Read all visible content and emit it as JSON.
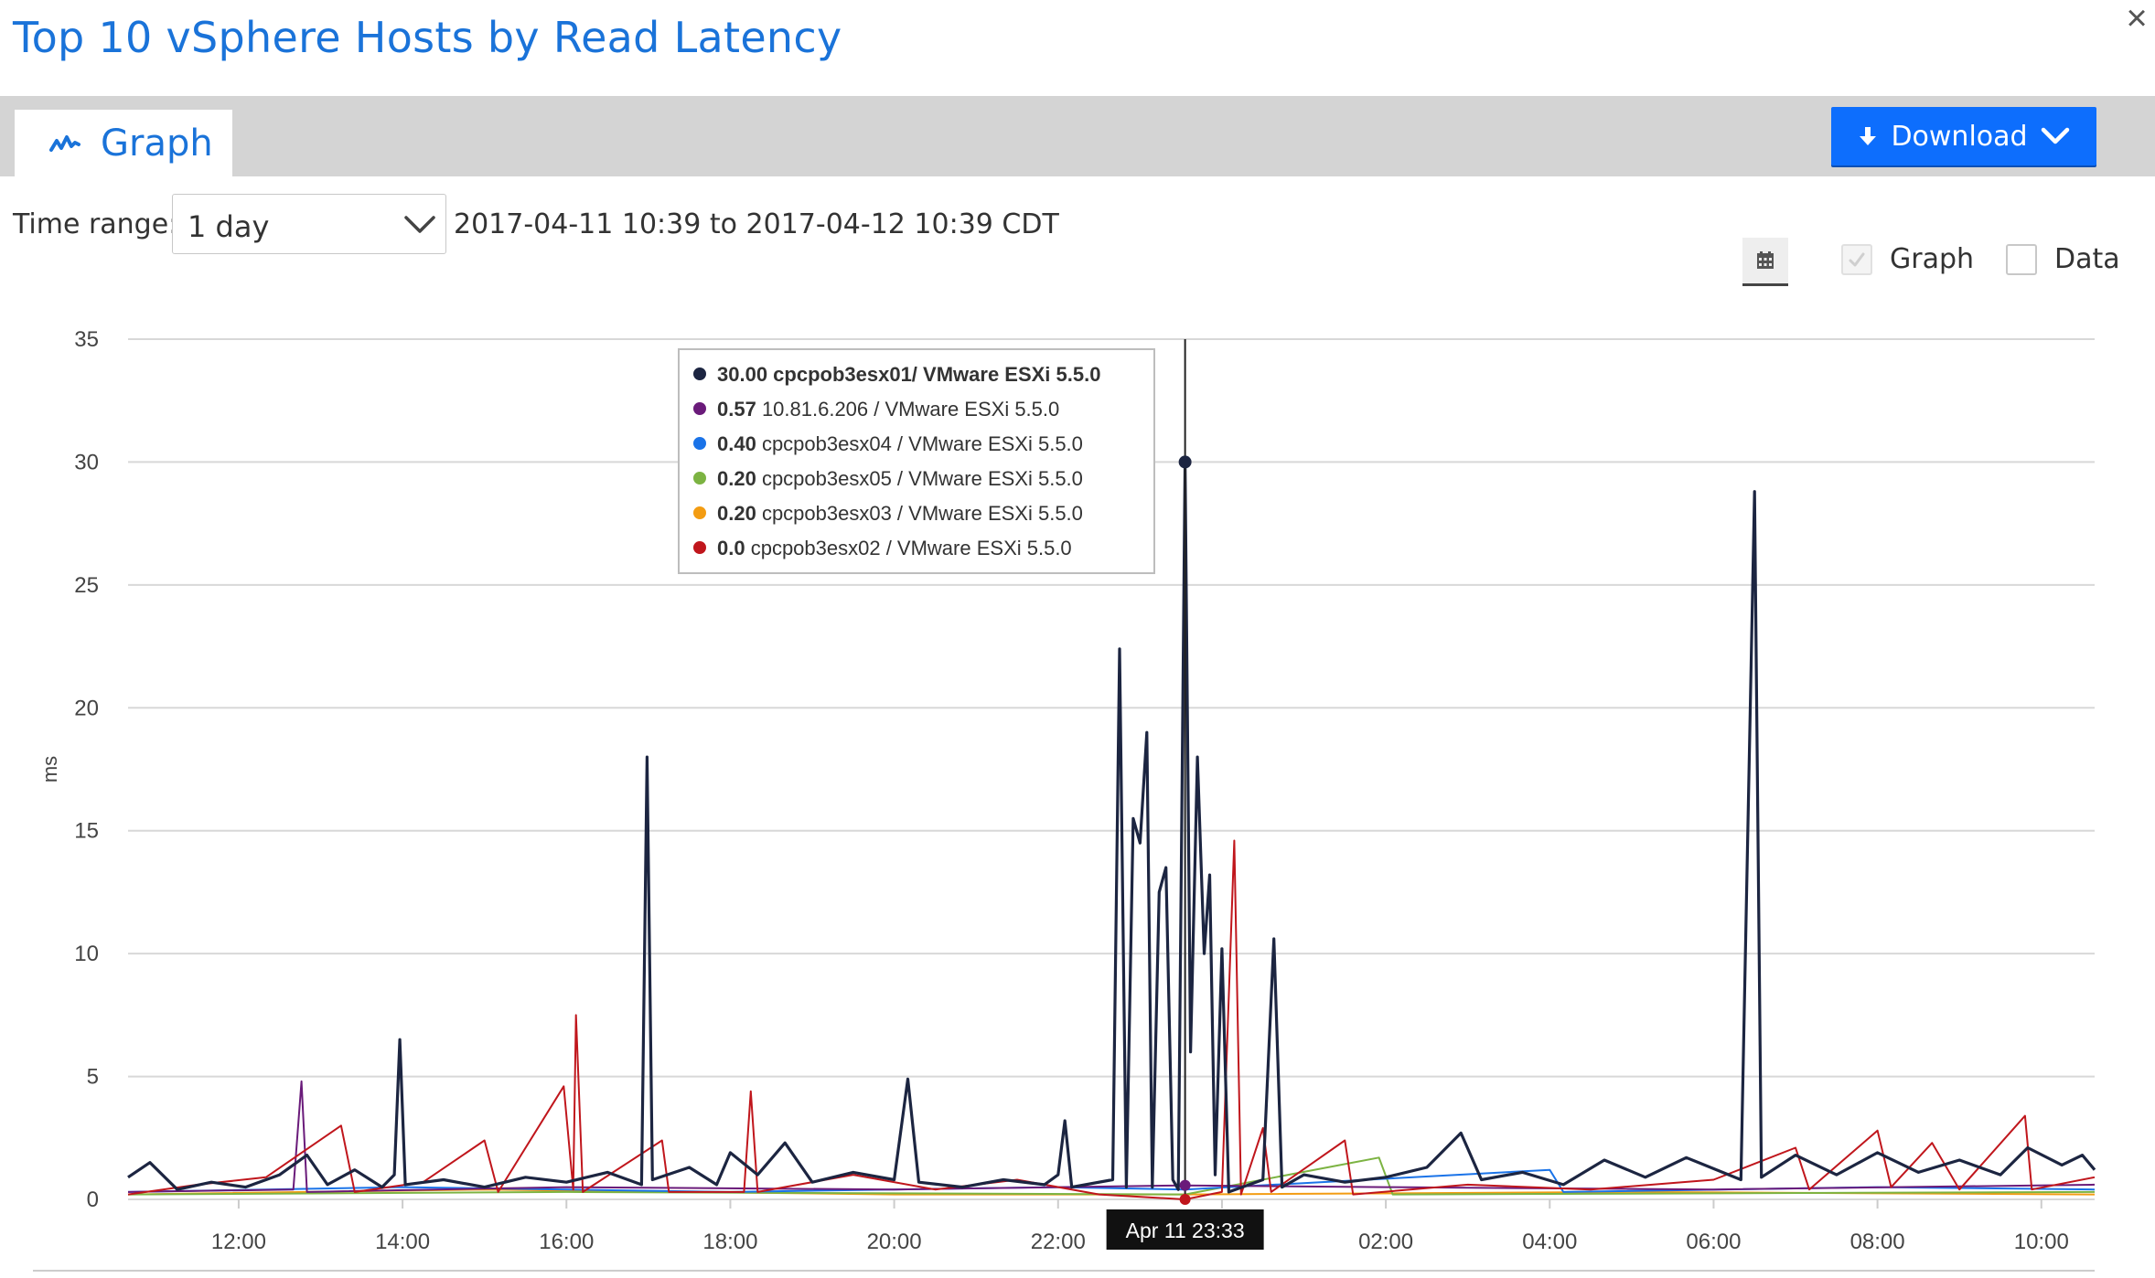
{
  "header": {
    "title": "Top 10 vSphere Hosts by Read Latency",
    "close_glyph": "×"
  },
  "tabs": [
    {
      "label": "Graph",
      "icon": "graph-icon",
      "active": true
    }
  ],
  "toolbar": {
    "download_label": "Download",
    "accent": "#0d6efd"
  },
  "controls": {
    "time_range_label": "Time range:",
    "time_range_value": "1 day",
    "date_range_text": "2017-04-11 10:39 to 2017-04-12 10:39 CDT",
    "calendar_icon": "calendar-icon",
    "view_options": [
      {
        "label": "Graph",
        "checked": true,
        "disabled": true
      },
      {
        "label": "Data",
        "checked": false
      }
    ]
  },
  "tooltip": {
    "entries": [
      {
        "value": "30.00",
        "label": "cpcpob3esx01/ VMware ESXi 5.5.0",
        "color": "#1c2541",
        "bold": true
      },
      {
        "value": "0.57",
        "label": "10.81.6.206 / VMware ESXi 5.5.0",
        "color": "#6a1b7a"
      },
      {
        "value": "0.40",
        "label": "cpcpob3esx04 / VMware ESXi 5.5.0",
        "color": "#1a73e8"
      },
      {
        "value": "0.20",
        "label": "cpcpob3esx05 / VMware ESXi 5.5.0",
        "color": "#7cb342"
      },
      {
        "value": "0.20",
        "label": "cpcpob3esx03 / VMware ESXi 5.5.0",
        "color": "#f39c12"
      },
      {
        "value": "0.0",
        "label": "cpcpob3esx02 / VMware ESXi 5.5.0",
        "color": "#c0161c"
      }
    ],
    "crosshair_label": "Apr 11 23:33"
  },
  "chart_data": {
    "type": "line",
    "ylabel": "ms",
    "ylim": [
      0,
      35
    ],
    "y_ticks": [
      "0",
      "5",
      "10",
      "15",
      "20",
      "25",
      "30",
      "35"
    ],
    "x_range": [
      "2017-04-11 10:39",
      "2017-04-12 10:39"
    ],
    "x_ticks": [
      "12:00",
      "14:00",
      "16:00",
      "18:00",
      "20:00",
      "22:00",
      "00:00",
      "02:00",
      "04:00",
      "06:00",
      "08:00",
      "10:00"
    ],
    "grid": true,
    "series": [
      {
        "name": "cpcpob3esx01/ VMware ESXi 5.5.0",
        "color": "#1c2541",
        "points": [
          [
            "2017-04-11 10:39",
            0.9
          ],
          [
            "2017-04-11 10:55",
            1.5
          ],
          [
            "2017-04-11 11:15",
            0.4
          ],
          [
            "2017-04-11 11:40",
            0.7
          ],
          [
            "2017-04-11 12:05",
            0.5
          ],
          [
            "2017-04-11 12:30",
            1.0
          ],
          [
            "2017-04-11 12:50",
            1.8
          ],
          [
            "2017-04-11 13:05",
            0.6
          ],
          [
            "2017-04-11 13:25",
            1.2
          ],
          [
            "2017-04-11 13:45",
            0.5
          ],
          [
            "2017-04-11 13:54",
            1.0
          ],
          [
            "2017-04-11 13:58",
            6.5
          ],
          [
            "2017-04-11 14:02",
            0.6
          ],
          [
            "2017-04-11 14:30",
            0.8
          ],
          [
            "2017-04-11 15:00",
            0.5
          ],
          [
            "2017-04-11 15:30",
            0.9
          ],
          [
            "2017-04-11 16:00",
            0.7
          ],
          [
            "2017-04-11 16:30",
            1.1
          ],
          [
            "2017-04-11 16:55",
            0.6
          ],
          [
            "2017-04-11 16:59",
            18.0
          ],
          [
            "2017-04-11 17:03",
            0.8
          ],
          [
            "2017-04-11 17:30",
            1.3
          ],
          [
            "2017-04-11 17:50",
            0.6
          ],
          [
            "2017-04-11 18:00",
            1.9
          ],
          [
            "2017-04-11 18:20",
            1.0
          ],
          [
            "2017-04-11 18:40",
            2.3
          ],
          [
            "2017-04-11 19:00",
            0.7
          ],
          [
            "2017-04-11 19:30",
            1.1
          ],
          [
            "2017-04-11 20:00",
            0.8
          ],
          [
            "2017-04-11 20:10",
            4.9
          ],
          [
            "2017-04-11 20:18",
            0.7
          ],
          [
            "2017-04-11 20:50",
            0.5
          ],
          [
            "2017-04-11 21:20",
            0.8
          ],
          [
            "2017-04-11 21:50",
            0.6
          ],
          [
            "2017-04-11 22:00",
            1.0
          ],
          [
            "2017-04-11 22:05",
            3.2
          ],
          [
            "2017-04-11 22:10",
            0.5
          ],
          [
            "2017-04-11 22:40",
            0.8
          ],
          [
            "2017-04-11 22:45",
            22.4
          ],
          [
            "2017-04-11 22:50",
            0.5
          ],
          [
            "2017-04-11 22:55",
            15.5
          ],
          [
            "2017-04-11 23:00",
            14.5
          ],
          [
            "2017-04-11 23:05",
            19.0
          ],
          [
            "2017-04-11 23:09",
            0.5
          ],
          [
            "2017-04-11 23:14",
            12.5
          ],
          [
            "2017-04-11 23:19",
            13.5
          ],
          [
            "2017-04-11 23:24",
            0.8
          ],
          [
            "2017-04-11 23:28",
            0.4
          ],
          [
            "2017-04-11 23:33",
            30.0
          ],
          [
            "2017-04-11 23:37",
            6.0
          ],
          [
            "2017-04-11 23:42",
            18.0
          ],
          [
            "2017-04-11 23:47",
            10.0
          ],
          [
            "2017-04-11 23:51",
            13.2
          ],
          [
            "2017-04-11 23:55",
            1.0
          ],
          [
            "2017-04-12 00:00",
            10.2
          ],
          [
            "2017-04-12 00:05",
            0.3
          ],
          [
            "2017-04-12 00:30",
            0.8
          ],
          [
            "2017-04-12 00:38",
            10.6
          ],
          [
            "2017-04-12 00:44",
            0.5
          ],
          [
            "2017-04-12 01:00",
            1.0
          ],
          [
            "2017-04-12 01:30",
            0.7
          ],
          [
            "2017-04-12 02:00",
            0.9
          ],
          [
            "2017-04-12 02:30",
            1.3
          ],
          [
            "2017-04-12 02:55",
            2.7
          ],
          [
            "2017-04-12 03:10",
            0.8
          ],
          [
            "2017-04-12 03:40",
            1.1
          ],
          [
            "2017-04-12 04:10",
            0.6
          ],
          [
            "2017-04-12 04:40",
            1.6
          ],
          [
            "2017-04-12 05:10",
            0.9
          ],
          [
            "2017-04-12 05:40",
            1.7
          ],
          [
            "2017-04-12 06:20",
            0.8
          ],
          [
            "2017-04-12 06:30",
            28.8
          ],
          [
            "2017-04-12 06:35",
            0.9
          ],
          [
            "2017-04-12 07:00",
            1.8
          ],
          [
            "2017-04-12 07:30",
            1.0
          ],
          [
            "2017-04-12 08:00",
            1.9
          ],
          [
            "2017-04-12 08:30",
            1.1
          ],
          [
            "2017-04-12 09:00",
            1.6
          ],
          [
            "2017-04-12 09:30",
            1.0
          ],
          [
            "2017-04-12 09:50",
            2.1
          ],
          [
            "2017-04-12 10:15",
            1.4
          ],
          [
            "2017-04-12 10:30",
            1.8
          ],
          [
            "2017-04-12 10:39",
            1.2
          ]
        ]
      },
      {
        "name": "cpcpob3esx02 / VMware ESXi 5.5.0",
        "color": "#c0161c",
        "points": [
          [
            "2017-04-11 10:39",
            0.2
          ],
          [
            "2017-04-11 11:30",
            0.6
          ],
          [
            "2017-04-11 12:20",
            0.9
          ],
          [
            "2017-04-11 13:15",
            3.0
          ],
          [
            "2017-04-11 13:25",
            0.3
          ],
          [
            "2017-04-11 14:15",
            0.7
          ],
          [
            "2017-04-11 15:00",
            2.4
          ],
          [
            "2017-04-11 15:10",
            0.3
          ],
          [
            "2017-04-11 15:58",
            4.6
          ],
          [
            "2017-04-11 16:05",
            0.4
          ],
          [
            "2017-04-11 16:07",
            7.5
          ],
          [
            "2017-04-11 16:12",
            0.3
          ],
          [
            "2017-04-11 17:10",
            2.4
          ],
          [
            "2017-04-11 17:15",
            0.3
          ],
          [
            "2017-04-11 18:10",
            0.3
          ],
          [
            "2017-04-11 18:15",
            4.4
          ],
          [
            "2017-04-11 18:20",
            0.3
          ],
          [
            "2017-04-11 19:30",
            1.0
          ],
          [
            "2017-04-11 20:30",
            0.4
          ],
          [
            "2017-04-11 21:30",
            0.8
          ],
          [
            "2017-04-11 22:30",
            0.2
          ],
          [
            "2017-04-11 23:33",
            0.0
          ],
          [
            "2017-04-12 00:00",
            0.3
          ],
          [
            "2017-04-12 00:09",
            14.6
          ],
          [
            "2017-04-12 00:14",
            0.2
          ],
          [
            "2017-04-12 00:30",
            2.9
          ],
          [
            "2017-04-12 00:36",
            0.3
          ],
          [
            "2017-04-12 01:30",
            2.4
          ],
          [
            "2017-04-12 01:36",
            0.2
          ],
          [
            "2017-04-12 03:00",
            0.6
          ],
          [
            "2017-04-12 04:30",
            0.4
          ],
          [
            "2017-04-12 06:00",
            0.8
          ],
          [
            "2017-04-12 07:00",
            2.1
          ],
          [
            "2017-04-12 07:10",
            0.4
          ],
          [
            "2017-04-12 08:00",
            2.8
          ],
          [
            "2017-04-12 08:10",
            0.5
          ],
          [
            "2017-04-12 08:40",
            2.3
          ],
          [
            "2017-04-12 09:00",
            0.4
          ],
          [
            "2017-04-12 09:48",
            3.4
          ],
          [
            "2017-04-12 09:53",
            0.4
          ],
          [
            "2017-04-12 10:39",
            0.9
          ]
        ]
      },
      {
        "name": "10.81.6.206 / VMware ESXi 5.5.0",
        "color": "#6a1b7a",
        "points": [
          [
            "2017-04-11 10:39",
            0.3
          ],
          [
            "2017-04-11 12:40",
            0.4
          ],
          [
            "2017-04-11 12:46",
            4.8
          ],
          [
            "2017-04-11 12:50",
            0.3
          ],
          [
            "2017-04-11 16:00",
            0.5
          ],
          [
            "2017-04-11 20:00",
            0.4
          ],
          [
            "2017-04-11 23:33",
            0.57
          ],
          [
            "2017-04-12 02:00",
            0.5
          ],
          [
            "2017-04-12 06:00",
            0.4
          ],
          [
            "2017-04-12 10:39",
            0.6
          ]
        ]
      },
      {
        "name": "cpcpob3esx04 / VMware ESXi 5.5.0",
        "color": "#1a73e8",
        "points": [
          [
            "2017-04-11 10:39",
            0.3
          ],
          [
            "2017-04-11 14:00",
            0.5
          ],
          [
            "2017-04-11 18:00",
            0.3
          ],
          [
            "2017-04-11 22:00",
            0.5
          ],
          [
            "2017-04-11 23:33",
            0.4
          ],
          [
            "2017-04-12 04:00",
            1.2
          ],
          [
            "2017-04-12 04:10",
            0.3
          ],
          [
            "2017-04-12 08:00",
            0.5
          ],
          [
            "2017-04-12 10:39",
            0.4
          ]
        ]
      },
      {
        "name": "cpcpob3esx05 / VMware ESXi 5.5.0",
        "color": "#7cb342",
        "points": [
          [
            "2017-04-11 10:39",
            0.2
          ],
          [
            "2017-04-11 16:00",
            0.3
          ],
          [
            "2017-04-11 23:33",
            0.2
          ],
          [
            "2017-04-12 01:55",
            1.7
          ],
          [
            "2017-04-12 02:05",
            0.2
          ],
          [
            "2017-04-12 10:39",
            0.3
          ]
        ]
      },
      {
        "name": "cpcpob3esx03 / VMware ESXi 5.5.0",
        "color": "#f39c12",
        "points": [
          [
            "2017-04-11 10:39",
            0.2
          ],
          [
            "2017-04-11 15:00",
            0.4
          ],
          [
            "2017-04-11 20:00",
            0.2
          ],
          [
            "2017-04-11 23:33",
            0.2
          ],
          [
            "2017-04-12 05:00",
            0.3
          ],
          [
            "2017-04-12 10:39",
            0.2
          ]
        ]
      }
    ]
  }
}
